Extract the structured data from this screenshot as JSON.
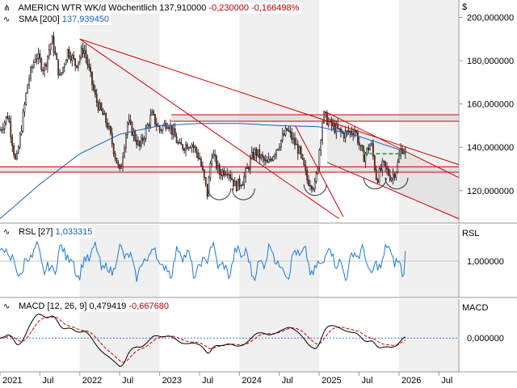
{
  "header": {
    "instrument": "AMERICN WTR WK/d",
    "period": "Wöchentlich",
    "price": "137,910000",
    "change_abs": "-0,230000",
    "change_pct": "-0,166498%",
    "sma_label": "SMA [200]",
    "sma_value": "137,939450",
    "rsl_label": "RSL [27]",
    "rsl_value": "1,033315",
    "macd_label": "MACD [12, 26, 9]",
    "macd_value": "0,479419",
    "macd_signal_value": "-0,667680"
  },
  "axis": {
    "currency": "$",
    "price_ticks": [
      "200,000000",
      "180,000000",
      "160,000000",
      "140,000000",
      "120,000000"
    ],
    "price_tick_values": [
      200,
      180,
      160,
      140,
      120
    ],
    "rsl_axis_label": "RSL",
    "rsl_tick": "1,000000",
    "macd_axis_label": "MACD",
    "macd_tick": "0,000000",
    "x_ticks": [
      "2021",
      "Jul",
      "2022",
      "Jul",
      "2023",
      "Jul",
      "2024",
      "Jul",
      "2025",
      "Jul",
      "2026",
      "Jul"
    ],
    "x_tick_dates": [
      2021.0,
      2021.5,
      2022.0,
      2022.5,
      2023.0,
      2023.5,
      2024.0,
      2024.5,
      2025.0,
      2025.5,
      2026.0,
      2026.5
    ]
  },
  "colors": {
    "candle_up": "#ffffff",
    "candle_down": "#c0392b",
    "candle_outline": "#000000",
    "sma": "#1c5fbf",
    "trendline": "#d00000",
    "zone_fill": "#d8d8d8",
    "target": "#2e8b2e",
    "rsl": "#1c7bd6",
    "macd": "#000000",
    "signal": "#d00000",
    "zero": "#3a7fd0"
  },
  "chart_data": [
    {
      "type": "candlestick",
      "panel": "price",
      "title": "AMERICN WTR WK/d Wöchentlich",
      "y_range": [
        105,
        208
      ],
      "x_range": [
        2021.0,
        2026.75
      ],
      "close_anchors": {
        "t": [
          2021.0,
          2021.1,
          2021.2,
          2021.35,
          2021.45,
          2021.55,
          2021.65,
          2021.75,
          2021.85,
          2021.95,
          2022.05,
          2022.2,
          2022.35,
          2022.5,
          2022.6,
          2022.75,
          2022.9,
          2023.0,
          2023.1,
          2023.25,
          2023.4,
          2023.5,
          2023.6,
          2023.65,
          2023.75,
          2023.85,
          2023.95,
          2024.05,
          2024.15,
          2024.2,
          2024.35,
          2024.5,
          2024.6,
          2024.75,
          2024.85,
          2024.95,
          2025.05,
          2025.15,
          2025.3,
          2025.45,
          2025.55,
          2025.65,
          2025.72,
          2025.8,
          2025.9,
          2025.97,
          2026.03,
          2026.08
        ],
        "close": [
          148,
          155,
          132,
          170,
          183,
          176,
          190,
          172,
          185,
          178,
          186,
          162,
          150,
          128,
          152,
          140,
          155,
          148,
          152,
          140,
          142,
          135,
          118,
          138,
          128,
          130,
          122,
          125,
          135,
          138,
          132,
          142,
          148,
          138,
          125,
          122,
          155,
          150,
          146,
          148,
          135,
          142,
          125,
          132,
          126,
          130,
          140,
          137.91
        ]
      },
      "sma_200": {
        "t": [
          2021.0,
          2021.5,
          2022.0,
          2022.5,
          2023.0,
          2023.5,
          2024.0,
          2024.5,
          2025.0,
          2025.5,
          2026.0,
          2026.08
        ],
        "value": [
          107,
          123,
          137,
          146,
          150,
          151,
          151,
          150,
          149.5,
          145,
          139,
          137.94
        ]
      },
      "trendlines": [
        {
          "name": "resistance-1",
          "t": [
            2022.0,
            2025.25
          ],
          "value": [
            190,
            107
          ]
        },
        {
          "name": "resistance-2",
          "t": [
            2022.0,
            2026.75
          ],
          "value": [
            190,
            132
          ]
        },
        {
          "name": "channel-top",
          "t": [
            2025.1,
            2026.75
          ],
          "value": [
            156,
            126
          ]
        },
        {
          "name": "channel-bottom",
          "t": [
            2025.1,
            2026.75
          ],
          "value": [
            133,
            107
          ]
        },
        {
          "name": "breakdown",
          "t": [
            2024.7,
            2025.3
          ],
          "value": [
            150,
            108
          ]
        }
      ],
      "horizontal_levels": [
        152,
        155,
        128.5,
        131
      ],
      "zones": [
        {
          "name": "upper-zone",
          "t": [
            2023.15,
            2026.75
          ],
          "value": [
            152,
            155
          ]
        },
        {
          "name": "lower-zone",
          "t": [
            2021.0,
            2026.75
          ],
          "value": [
            128.5,
            131
          ]
        }
      ],
      "target_line": {
        "t": [
          2025.55,
          2026.1
        ],
        "value": 137
      },
      "arcs": [
        {
          "t": 2023.75,
          "value": 121
        },
        {
          "t": 2024.05,
          "value": 121
        },
        {
          "t": 2024.95,
          "value": 123
        },
        {
          "t": 2025.7,
          "value": 126
        },
        {
          "t": 2025.97,
          "value": 126
        }
      ]
    },
    {
      "type": "line",
      "panel": "rsl",
      "title": "RSL [27]",
      "y_range": [
        0.88,
        1.12
      ],
      "last": 1.033315
    },
    {
      "type": "line",
      "panel": "macd",
      "title": "MACD [12, 26, 9]",
      "y_range": [
        -13,
        15
      ],
      "series": [
        {
          "name": "MACD",
          "last": 0.479419
        },
        {
          "name": "Signal",
          "last": -0.66768
        }
      ]
    }
  ]
}
